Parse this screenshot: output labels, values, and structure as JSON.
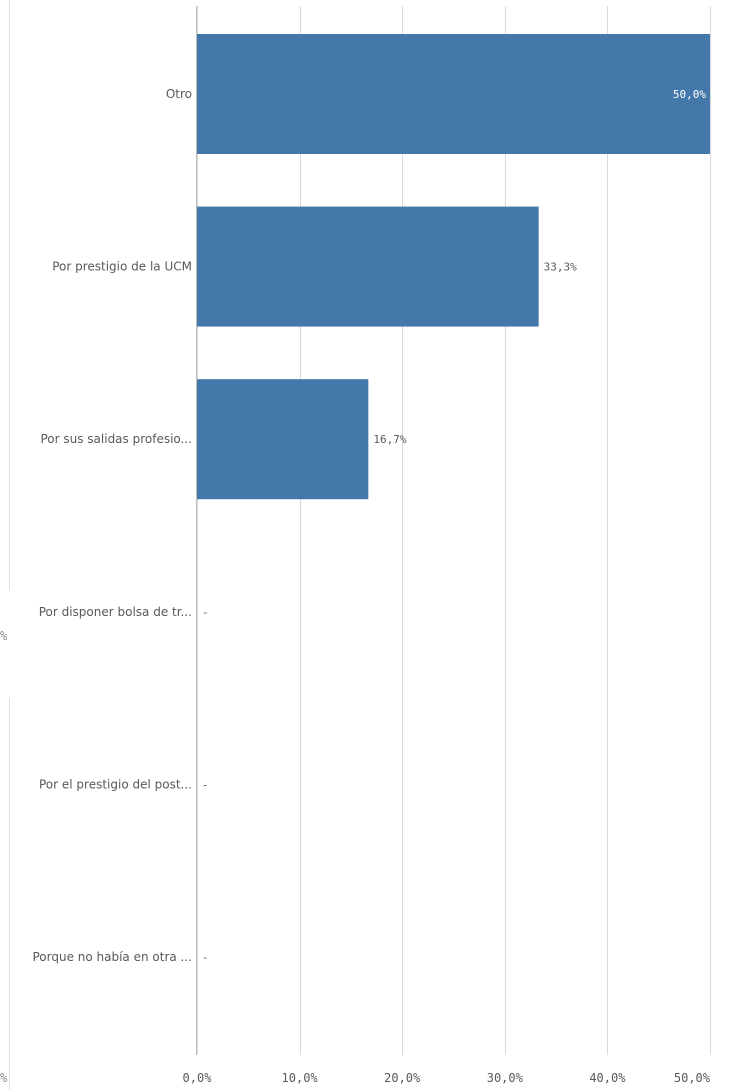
{
  "chart_data": {
    "type": "bar",
    "orientation": "horizontal",
    "categories": [
      "Otro",
      "Por prestigio de la UCM",
      "Por sus salidas profesio...",
      "Por disponer bolsa de tr...",
      "Por el prestigio del post...",
      "Porque no había en otra ..."
    ],
    "values": [
      50.0,
      33.3,
      16.7,
      null,
      null,
      null
    ],
    "value_labels": [
      "50,0%",
      "33,3%",
      "16,7%",
      "-",
      "-",
      "-"
    ],
    "xlim": [
      0,
      50
    ],
    "x_ticks": [
      0,
      10,
      20,
      30,
      40,
      50
    ],
    "x_tick_labels": [
      "0,0%",
      "10,0%",
      "20,0%",
      "30,0%",
      "40,0%",
      "50,0%"
    ],
    "grid": true,
    "bar_color": "#4477aa",
    "gridline_color": "#d9d9d9",
    "left_panel_fragments": [
      "%",
      "%"
    ]
  }
}
